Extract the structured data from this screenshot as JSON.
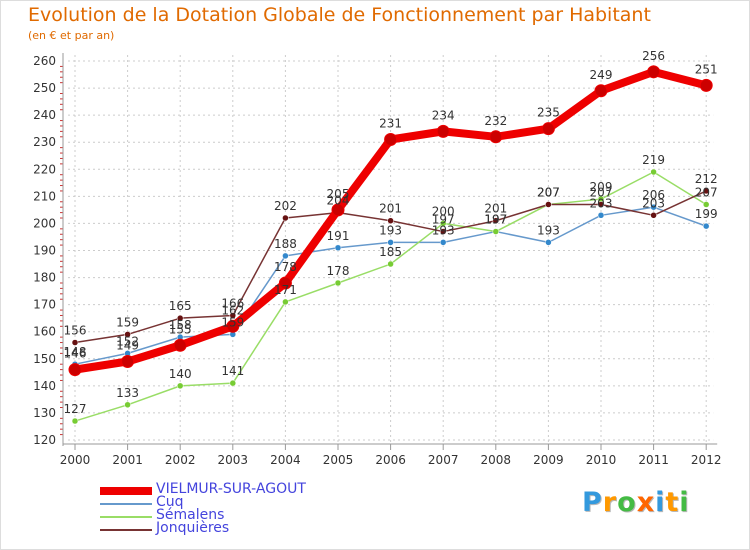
{
  "title": "Evolution de la Dotation Globale de Fonctionnement par Habitant",
  "subtitle": "(en € et par an)",
  "logo": {
    "letters": [
      "P",
      "r",
      "o",
      "x",
      "i",
      "t",
      "i"
    ],
    "colors": [
      "#3399dd",
      "#ff9900",
      "#44bb44",
      "#ff6600",
      "#3399dd",
      "#ff9900",
      "#44bb44"
    ]
  },
  "chart_data": {
    "type": "line",
    "title": "Evolution de la Dotation Globale de Fonctionnement par Habitant",
    "subtitle": "(en € et par an)",
    "xlabel": "",
    "ylabel": "",
    "categories": [
      "2000",
      "2001",
      "2002",
      "2003",
      "2004",
      "2005",
      "2006",
      "2007",
      "2008",
      "2009",
      "2010",
      "2011",
      "2012"
    ],
    "ylim": [
      120,
      260
    ],
    "yticks": [
      120,
      130,
      140,
      150,
      160,
      170,
      180,
      190,
      200,
      210,
      220,
      230,
      240,
      250,
      260
    ],
    "grid": true,
    "legend_position": "bottom-left",
    "series": [
      {
        "name": "VIELMUR-SUR-AGOUT",
        "color": "#ee0000",
        "marker": "#cc0000",
        "emphasis": true,
        "values": [
          146,
          149,
          155,
          162,
          178,
          205,
          231,
          234,
          232,
          235,
          249,
          256,
          251
        ]
      },
      {
        "name": "Cuq",
        "color": "#6699cc",
        "marker": "#3388cc",
        "emphasis": false,
        "values": [
          148,
          152,
          158,
          159,
          188,
          191,
          193,
          193,
          197,
          193,
          203,
          206,
          199
        ]
      },
      {
        "name": "Sémalens",
        "color": "#99dd66",
        "marker": "#77cc33",
        "emphasis": false,
        "values": [
          127,
          133,
          140,
          141,
          171,
          178,
          185,
          200,
          197,
          207,
          209,
          219,
          207
        ]
      },
      {
        "name": "Jonquières",
        "color": "#773333",
        "marker": "#661111",
        "emphasis": false,
        "values": [
          156,
          159,
          165,
          166,
          202,
          204,
          201,
          197,
          201,
          207,
          207,
          203,
          212
        ]
      }
    ]
  }
}
